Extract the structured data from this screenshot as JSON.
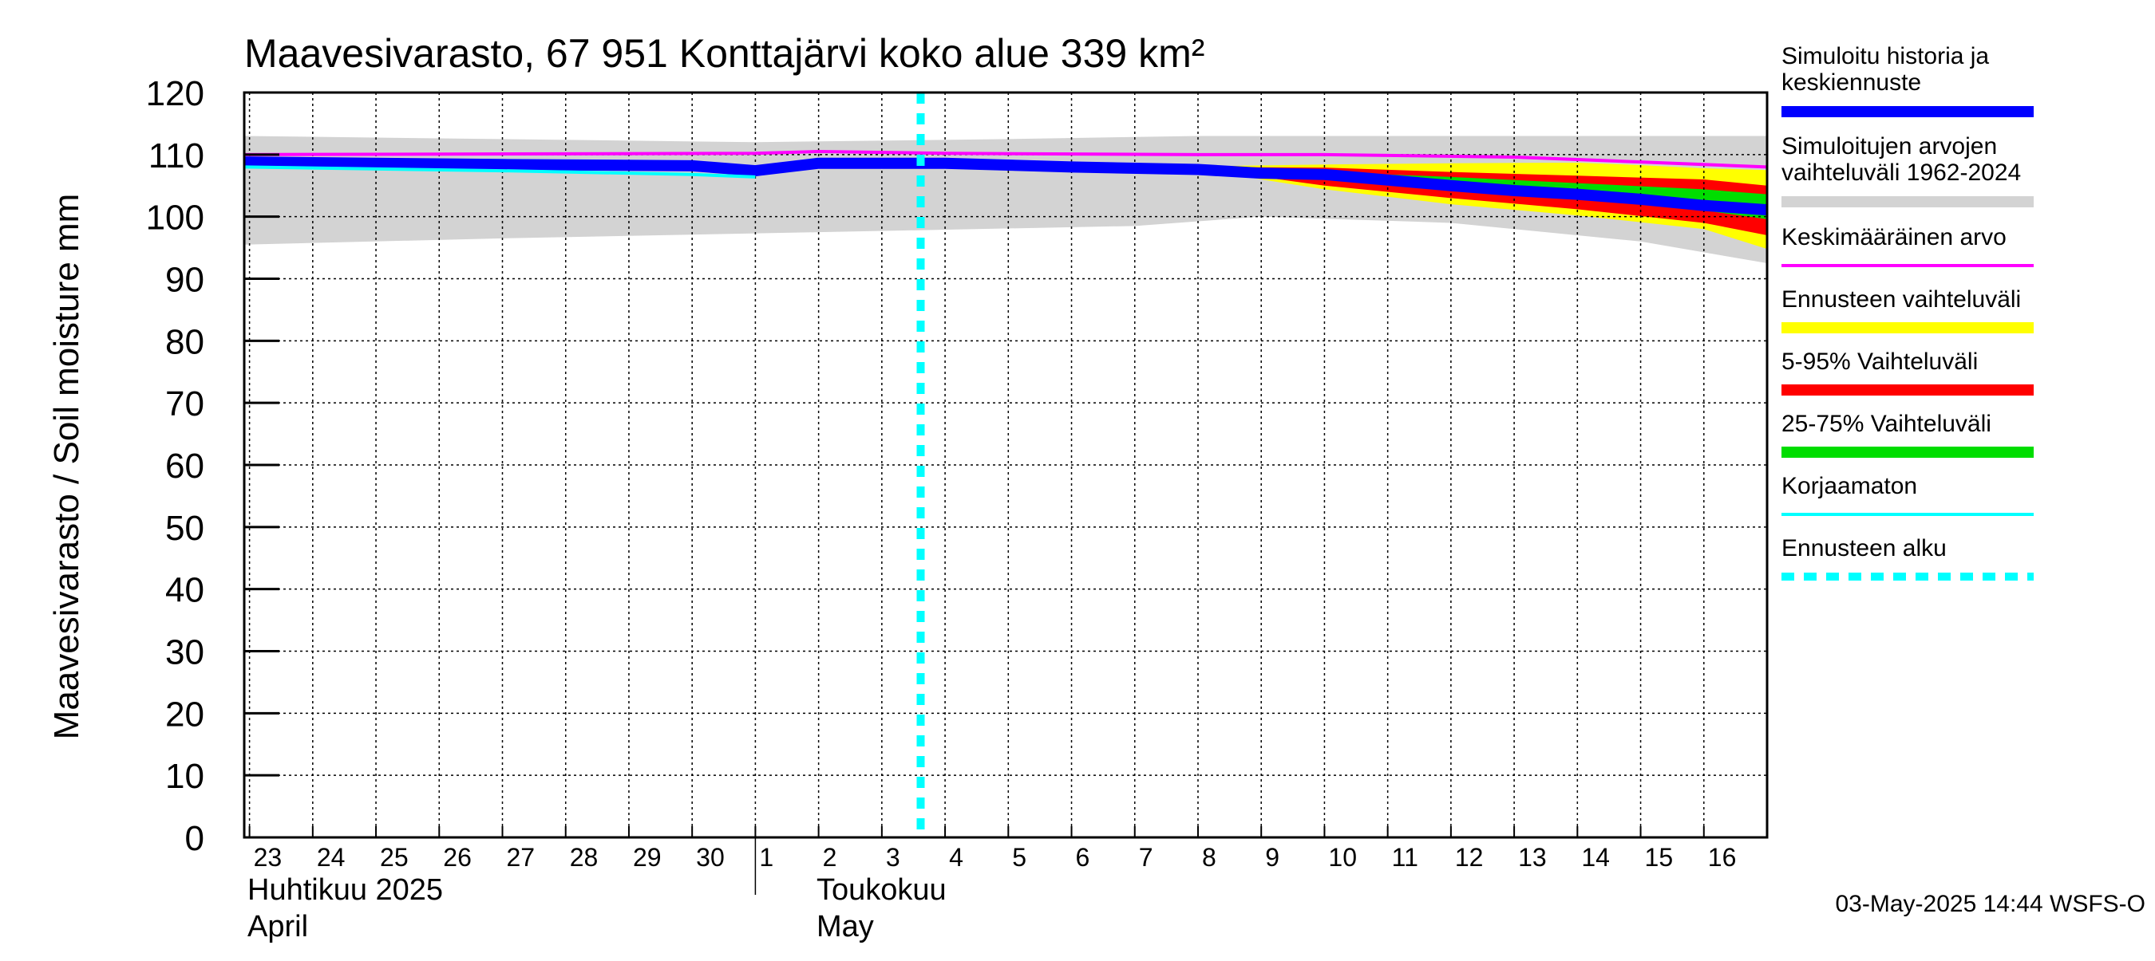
{
  "chart_data": {
    "type": "area",
    "title": "Maavesivarasto, 67 951 Konttajärvi koko alue 339 km²",
    "ylabel": "Maavesivarasto / Soil moisture   mm",
    "ylim": [
      0,
      120
    ],
    "yticks": [
      0,
      10,
      20,
      30,
      40,
      50,
      60,
      70,
      80,
      90,
      100,
      110,
      120
    ],
    "x_range": [
      "2025-04-22T22:00",
      "2025-05-17T00:00"
    ],
    "day_ticks": [
      {
        "label": "23",
        "date": "2025-04-23"
      },
      {
        "label": "24",
        "date": "2025-04-24"
      },
      {
        "label": "25",
        "date": "2025-04-25"
      },
      {
        "label": "26",
        "date": "2025-04-26"
      },
      {
        "label": "27",
        "date": "2025-04-27"
      },
      {
        "label": "28",
        "date": "2025-04-28"
      },
      {
        "label": "29",
        "date": "2025-04-29"
      },
      {
        "label": "30",
        "date": "2025-04-30"
      },
      {
        "label": "1",
        "date": "2025-05-01"
      },
      {
        "label": "2",
        "date": "2025-05-02"
      },
      {
        "label": "3",
        "date": "2025-05-03"
      },
      {
        "label": "4",
        "date": "2025-05-04"
      },
      {
        "label": "5",
        "date": "2025-05-05"
      },
      {
        "label": "6",
        "date": "2025-05-06"
      },
      {
        "label": "7",
        "date": "2025-05-07"
      },
      {
        "label": "8",
        "date": "2025-05-08"
      },
      {
        "label": "9",
        "date": "2025-05-09"
      },
      {
        "label": "10",
        "date": "2025-05-10"
      },
      {
        "label": "11",
        "date": "2025-05-11"
      },
      {
        "label": "12",
        "date": "2025-05-12"
      },
      {
        "label": "13",
        "date": "2025-05-13"
      },
      {
        "label": "14",
        "date": "2025-05-14"
      },
      {
        "label": "15",
        "date": "2025-05-15"
      },
      {
        "label": "16",
        "date": "2025-05-16"
      }
    ],
    "month_labels": [
      {
        "line1": "Huhtikuu  2025",
        "line2": "April",
        "date": "2025-04-22T22:00"
      },
      {
        "line1": "Toukokuu",
        "line2": "May",
        "date": "2025-05-01T22:00"
      }
    ],
    "month_separator_date": "2025-05-01",
    "forecast_start": "2025-05-03T14:44",
    "grid": true,
    "legend_position": "right",
    "footer": "03-May-2025 14:44 WSFS-O",
    "series": [
      {
        "name": "Simuloitu historia ja keskiennuste",
        "color": "#0000ff",
        "kind": "line",
        "width": 14,
        "points": [
          [
            "2025-04-22T22:00",
            108.8
          ],
          [
            "2025-04-27",
            "108.4"
          ],
          [
            "2025-04-30",
            "108.2"
          ],
          [
            "2025-05-01",
            "107.4"
          ],
          [
            "2025-05-02",
            "108.6"
          ],
          [
            "2025-05-04",
            "108.6"
          ],
          [
            "2025-05-06",
            "108.0"
          ],
          [
            "2025-05-08",
            "107.6"
          ],
          [
            "2025-05-09",
            "107.0"
          ],
          [
            "2025-05-10",
            "106.8"
          ],
          [
            "2025-05-11",
            "105.9"
          ],
          [
            "2025-05-12",
            "105.0"
          ],
          [
            "2025-05-13",
            "104.2"
          ],
          [
            "2025-05-14",
            "103.6"
          ],
          [
            "2025-05-15",
            "102.8"
          ],
          [
            "2025-05-16",
            "101.8"
          ],
          [
            "2025-05-17",
            "101.1"
          ]
        ]
      },
      {
        "name": "Simuloitujen arvojen vaihteluväli 1962-2024",
        "color": "#d3d3d3",
        "kind": "band",
        "upper": [
          [
            "2025-04-22T22:00",
            113
          ],
          [
            "2025-05-01",
            112
          ],
          [
            "2025-05-05",
            112.5
          ],
          [
            "2025-05-08",
            113
          ],
          [
            "2025-05-10",
            113
          ],
          [
            "2025-05-17",
            113
          ]
        ],
        "lower": [
          [
            "2025-04-22T22:00",
            95.5
          ],
          [
            "2025-04-27",
            96.5
          ],
          [
            "2025-05-02",
            97.5
          ],
          [
            "2025-05-07",
            98.5
          ],
          [
            "2025-05-09",
            100
          ],
          [
            "2025-05-12",
            99
          ],
          [
            "2025-05-15",
            96
          ],
          [
            "2025-05-17",
            92.5
          ]
        ]
      },
      {
        "name": "Keskimääräinen arvo",
        "color": "#ff00ff",
        "kind": "line",
        "width": 4,
        "points": [
          [
            "2025-04-22T22:00",
            110
          ],
          [
            "2025-05-01",
            110.2
          ],
          [
            "2025-05-02",
            110.5
          ],
          [
            "2025-05-04",
            110.2
          ],
          [
            "2025-05-08",
            110
          ],
          [
            "2025-05-10",
            110
          ],
          [
            "2025-05-13",
            109.6
          ],
          [
            "2025-05-15",
            108.8
          ],
          [
            "2025-05-17",
            108
          ]
        ]
      },
      {
        "name": "Ennusteen vaihteluväli",
        "color": "#ffff00",
        "kind": "band",
        "upper": [
          [
            "2025-05-08",
            108.1
          ],
          [
            "2025-05-10",
            108.4
          ],
          [
            "2025-05-12",
            108.6
          ],
          [
            "2025-05-14",
            108.7
          ],
          [
            "2025-05-15",
            108.3
          ],
          [
            "2025-05-16",
            107.8
          ],
          [
            "2025-05-17",
            107.5
          ]
        ],
        "lower": [
          [
            "2025-05-08",
            107.6
          ],
          [
            "2025-05-09",
            106.0
          ],
          [
            "2025-05-10",
            104.4
          ],
          [
            "2025-05-12",
            102.0
          ],
          [
            "2025-05-14",
            100.2
          ],
          [
            "2025-05-16",
            98.0
          ],
          [
            "2025-05-17",
            94.8
          ]
        ]
      },
      {
        "name": "5-95% Vaihteluväli",
        "color": "#ff0000",
        "kind": "band",
        "upper": [
          [
            "2025-05-08",
            108.0
          ],
          [
            "2025-05-10",
            107.9
          ],
          [
            "2025-05-12",
            107.2
          ],
          [
            "2025-05-14",
            106.6
          ],
          [
            "2025-05-16",
            106.0
          ],
          [
            "2025-05-17",
            105.0
          ]
        ],
        "lower": [
          [
            "2025-05-08",
            107.6
          ],
          [
            "2025-05-09",
            106.4
          ],
          [
            "2025-05-10",
            105.0
          ],
          [
            "2025-05-12",
            103.0
          ],
          [
            "2025-05-14",
            101.2
          ],
          [
            "2025-05-16",
            99.0
          ],
          [
            "2025-05-17",
            97.0
          ]
        ]
      },
      {
        "name": "25-75% Vaihteluväli",
        "color": "#00dd00",
        "kind": "band",
        "upper": [
          [
            "2025-05-08",
            107.8
          ],
          [
            "2025-05-10",
            107.2
          ],
          [
            "2025-05-12",
            106.4
          ],
          [
            "2025-05-14",
            105.4
          ],
          [
            "2025-05-16",
            104.4
          ],
          [
            "2025-05-17",
            103.6
          ]
        ],
        "lower": [
          [
            "2025-05-08",
            107.6
          ],
          [
            "2025-05-10",
            106.3
          ],
          [
            "2025-05-12",
            104.6
          ],
          [
            "2025-05-14",
            102.9
          ],
          [
            "2025-05-16",
            101.0
          ],
          [
            "2025-05-17",
            99.6
          ]
        ]
      },
      {
        "name": "Korjaamaton",
        "color": "#00ffff",
        "kind": "line",
        "width": 4,
        "points": [
          [
            "2025-04-22T22:00",
            108.0
          ],
          [
            "2025-04-27",
            107.4
          ],
          [
            "2025-04-30",
            106.8
          ],
          [
            "2025-05-01",
            106.4
          ]
        ]
      },
      {
        "name": "Ennusteen alku",
        "color": "#00ffff",
        "kind": "vline",
        "width": 10,
        "dash": "14 12"
      }
    ],
    "legend": [
      {
        "label": "Simuloitu historia ja\nkeskiennuste",
        "color": "#0000ff",
        "style": "thick"
      },
      {
        "label": "Simuloitujen arvojen\nvaihteluväli 1962-2024",
        "color": "#d3d3d3",
        "style": "thick"
      },
      {
        "label": "Keskimääräinen arvo",
        "color": "#ff00ff",
        "style": "thin"
      },
      {
        "label": "Ennusteen vaihteluväli",
        "color": "#ffff00",
        "style": "thick"
      },
      {
        "label": "5-95% Vaihteluväli",
        "color": "#ff0000",
        "style": "thick"
      },
      {
        "label": "25-75% Vaihteluväli",
        "color": "#00dd00",
        "style": "thick"
      },
      {
        "label": "Korjaamaton",
        "color": "#00ffff",
        "style": "thin"
      },
      {
        "label": "Ennusteen alku",
        "color": "#00ffff",
        "style": "dashed"
      }
    ]
  }
}
